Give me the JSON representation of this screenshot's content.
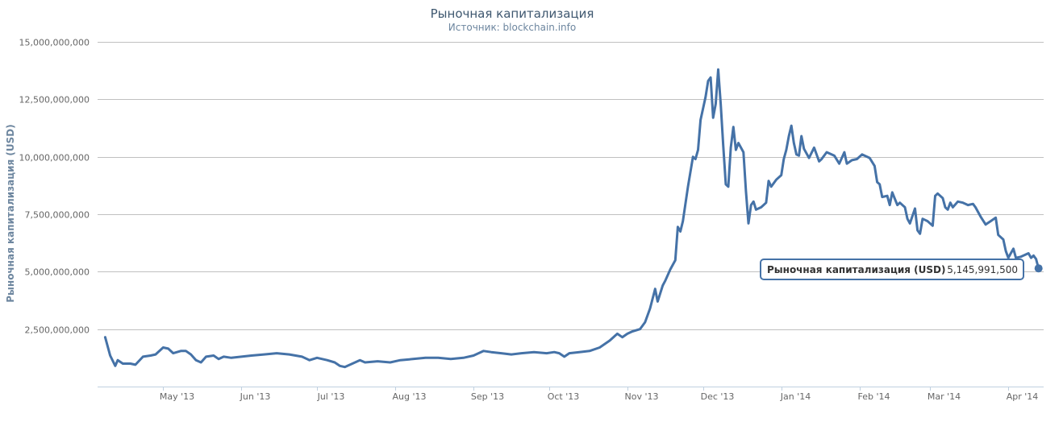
{
  "colors": {
    "series": "#4572a7",
    "tooltip_border": "#4572a7"
  },
  "chart_data": {
    "type": "line",
    "title": "Рыночная капитализация",
    "subtitle": "Источник: blockchain.info",
    "ylabel": "Рыночная капитализация (USD)",
    "xlabel": "",
    "ylim": [
      0,
      15000000000
    ],
    "xlim": [
      "2013-04-05",
      "2014-04-15"
    ],
    "grid": true,
    "y_ticks": [
      {
        "value": 2500000000,
        "label": "2,500,000,000"
      },
      {
        "value": 5000000000,
        "label": "5,000,000,000"
      },
      {
        "value": 7500000000,
        "label": "7,500,000,000"
      },
      {
        "value": 10000000000,
        "label": "10,000,000,000"
      },
      {
        "value": 12500000000,
        "label": "12,500,000,000"
      },
      {
        "value": 15000000000,
        "label": "15,000,000,000"
      }
    ],
    "x_ticks": [
      {
        "date": "2013-05-01",
        "label": "May '13"
      },
      {
        "date": "2013-06-01",
        "label": "Jun '13"
      },
      {
        "date": "2013-07-01",
        "label": "Jul '13"
      },
      {
        "date": "2013-08-01",
        "label": "Aug '13"
      },
      {
        "date": "2013-09-01",
        "label": "Sep '13"
      },
      {
        "date": "2013-10-01",
        "label": "Oct '13"
      },
      {
        "date": "2013-11-01",
        "label": "Nov '13"
      },
      {
        "date": "2013-12-01",
        "label": "Dec '13"
      },
      {
        "date": "2014-01-01",
        "label": "Jan '14"
      },
      {
        "date": "2014-02-01",
        "label": "Feb '14"
      },
      {
        "date": "2014-03-01",
        "label": "Mar '14"
      },
      {
        "date": "2014-04-01",
        "label": "Apr '14"
      }
    ],
    "series": [
      {
        "name": "Рыночная капитализация (USD)",
        "points": [
          [
            "2013-04-08",
            2150000000
          ],
          [
            "2013-04-10",
            1350000000
          ],
          [
            "2013-04-12",
            900000000
          ],
          [
            "2013-04-13",
            1150000000
          ],
          [
            "2013-04-15",
            1000000000
          ],
          [
            "2013-04-18",
            1000000000
          ],
          [
            "2013-04-20",
            950000000
          ],
          [
            "2013-04-23",
            1300000000
          ],
          [
            "2013-04-26",
            1350000000
          ],
          [
            "2013-04-28",
            1400000000
          ],
          [
            "2013-05-01",
            1700000000
          ],
          [
            "2013-05-03",
            1650000000
          ],
          [
            "2013-05-05",
            1450000000
          ],
          [
            "2013-05-08",
            1550000000
          ],
          [
            "2013-05-10",
            1550000000
          ],
          [
            "2013-05-12",
            1400000000
          ],
          [
            "2013-05-14",
            1150000000
          ],
          [
            "2013-05-16",
            1050000000
          ],
          [
            "2013-05-18",
            1300000000
          ],
          [
            "2013-05-21",
            1350000000
          ],
          [
            "2013-05-23",
            1200000000
          ],
          [
            "2013-05-25",
            1300000000
          ],
          [
            "2013-05-28",
            1250000000
          ],
          [
            "2013-06-01",
            1300000000
          ],
          [
            "2013-06-05",
            1350000000
          ],
          [
            "2013-06-10",
            1400000000
          ],
          [
            "2013-06-15",
            1450000000
          ],
          [
            "2013-06-20",
            1400000000
          ],
          [
            "2013-06-25",
            1300000000
          ],
          [
            "2013-06-28",
            1150000000
          ],
          [
            "2013-07-01",
            1250000000
          ],
          [
            "2013-07-05",
            1150000000
          ],
          [
            "2013-07-08",
            1050000000
          ],
          [
            "2013-07-10",
            900000000
          ],
          [
            "2013-07-12",
            850000000
          ],
          [
            "2013-07-15",
            1000000000
          ],
          [
            "2013-07-18",
            1150000000
          ],
          [
            "2013-07-20",
            1050000000
          ],
          [
            "2013-07-25",
            1100000000
          ],
          [
            "2013-07-30",
            1050000000
          ],
          [
            "2013-08-03",
            1150000000
          ],
          [
            "2013-08-08",
            1200000000
          ],
          [
            "2013-08-13",
            1250000000
          ],
          [
            "2013-08-18",
            1250000000
          ],
          [
            "2013-08-23",
            1200000000
          ],
          [
            "2013-08-28",
            1250000000
          ],
          [
            "2013-09-01",
            1350000000
          ],
          [
            "2013-09-05",
            1550000000
          ],
          [
            "2013-09-08",
            1500000000
          ],
          [
            "2013-09-12",
            1450000000
          ],
          [
            "2013-09-16",
            1400000000
          ],
          [
            "2013-09-20",
            1450000000
          ],
          [
            "2013-09-25",
            1500000000
          ],
          [
            "2013-09-30",
            1450000000
          ],
          [
            "2013-10-03",
            1500000000
          ],
          [
            "2013-10-05",
            1450000000
          ],
          [
            "2013-10-07",
            1300000000
          ],
          [
            "2013-10-09",
            1450000000
          ],
          [
            "2013-10-13",
            1500000000
          ],
          [
            "2013-10-17",
            1550000000
          ],
          [
            "2013-10-21",
            1700000000
          ],
          [
            "2013-10-25",
            2000000000
          ],
          [
            "2013-10-28",
            2300000000
          ],
          [
            "2013-10-30",
            2150000000
          ],
          [
            "2013-11-01",
            2300000000
          ],
          [
            "2013-11-03",
            2400000000
          ],
          [
            "2013-11-06",
            2500000000
          ],
          [
            "2013-11-08",
            2800000000
          ],
          [
            "2013-11-10",
            3400000000
          ],
          [
            "2013-11-12",
            4250000000
          ],
          [
            "2013-11-13",
            3700000000
          ],
          [
            "2013-11-15",
            4400000000
          ],
          [
            "2013-11-16",
            4600000000
          ],
          [
            "2013-11-18",
            5100000000
          ],
          [
            "2013-11-20",
            5500000000
          ],
          [
            "2013-11-21",
            6950000000
          ],
          [
            "2013-11-22",
            6750000000
          ],
          [
            "2013-11-23",
            7200000000
          ],
          [
            "2013-11-25",
            8700000000
          ],
          [
            "2013-11-27",
            10000000000
          ],
          [
            "2013-11-28",
            9900000000
          ],
          [
            "2013-11-29",
            10300000000
          ],
          [
            "2013-11-30",
            11600000000
          ],
          [
            "2013-12-02",
            12600000000
          ],
          [
            "2013-12-03",
            13300000000
          ],
          [
            "2013-12-04",
            13450000000
          ],
          [
            "2013-12-05",
            11700000000
          ],
          [
            "2013-12-06",
            12300000000
          ],
          [
            "2013-12-07",
            13800000000
          ],
          [
            "2013-12-08",
            12300000000
          ],
          [
            "2013-12-09",
            10500000000
          ],
          [
            "2013-12-10",
            8800000000
          ],
          [
            "2013-12-11",
            8700000000
          ],
          [
            "2013-12-12",
            10400000000
          ],
          [
            "2013-12-13",
            11300000000
          ],
          [
            "2013-12-14",
            10300000000
          ],
          [
            "2013-12-15",
            10600000000
          ],
          [
            "2013-12-17",
            10200000000
          ],
          [
            "2013-12-18",
            8500000000
          ],
          [
            "2013-12-19",
            7100000000
          ],
          [
            "2013-12-20",
            7900000000
          ],
          [
            "2013-12-21",
            8050000000
          ],
          [
            "2013-12-22",
            7700000000
          ],
          [
            "2013-12-24",
            7800000000
          ],
          [
            "2013-12-26",
            8000000000
          ],
          [
            "2013-12-27",
            8950000000
          ],
          [
            "2013-12-28",
            8700000000
          ],
          [
            "2013-12-30",
            9000000000
          ],
          [
            "2014-01-01",
            9200000000
          ],
          [
            "2014-01-02",
            9900000000
          ],
          [
            "2014-01-03",
            10300000000
          ],
          [
            "2014-01-04",
            10900000000
          ],
          [
            "2014-01-05",
            11350000000
          ],
          [
            "2014-01-06",
            10600000000
          ],
          [
            "2014-01-07",
            10100000000
          ],
          [
            "2014-01-08",
            10050000000
          ],
          [
            "2014-01-09",
            10900000000
          ],
          [
            "2014-01-10",
            10350000000
          ],
          [
            "2014-01-12",
            9950000000
          ],
          [
            "2014-01-14",
            10400000000
          ],
          [
            "2014-01-16",
            9800000000
          ],
          [
            "2014-01-17",
            9900000000
          ],
          [
            "2014-01-19",
            10200000000
          ],
          [
            "2014-01-22",
            10050000000
          ],
          [
            "2014-01-24",
            9700000000
          ],
          [
            "2014-01-26",
            10200000000
          ],
          [
            "2014-01-27",
            9700000000
          ],
          [
            "2014-01-29",
            9850000000
          ],
          [
            "2014-01-31",
            9900000000
          ],
          [
            "2014-02-02",
            10100000000
          ],
          [
            "2014-02-05",
            9950000000
          ],
          [
            "2014-02-07",
            9600000000
          ],
          [
            "2014-02-08",
            8900000000
          ],
          [
            "2014-02-09",
            8800000000
          ],
          [
            "2014-02-10",
            8250000000
          ],
          [
            "2014-02-12",
            8300000000
          ],
          [
            "2014-02-13",
            7900000000
          ],
          [
            "2014-02-14",
            8450000000
          ],
          [
            "2014-02-16",
            7900000000
          ],
          [
            "2014-02-17",
            8000000000
          ],
          [
            "2014-02-19",
            7800000000
          ],
          [
            "2014-02-20",
            7300000000
          ],
          [
            "2014-02-21",
            7100000000
          ],
          [
            "2014-02-23",
            7750000000
          ],
          [
            "2014-02-24",
            6800000000
          ],
          [
            "2014-02-25",
            6650000000
          ],
          [
            "2014-02-26",
            7300000000
          ],
          [
            "2014-02-28",
            7200000000
          ],
          [
            "2014-03-02",
            7000000000
          ],
          [
            "2014-03-03",
            8300000000
          ],
          [
            "2014-03-04",
            8400000000
          ],
          [
            "2014-03-06",
            8200000000
          ],
          [
            "2014-03-07",
            7800000000
          ],
          [
            "2014-03-08",
            7700000000
          ],
          [
            "2014-03-09",
            8000000000
          ],
          [
            "2014-03-10",
            7800000000
          ],
          [
            "2014-03-12",
            8050000000
          ],
          [
            "2014-03-14",
            8000000000
          ],
          [
            "2014-03-16",
            7900000000
          ],
          [
            "2014-03-18",
            7950000000
          ],
          [
            "2014-03-19",
            7800000000
          ],
          [
            "2014-03-21",
            7400000000
          ],
          [
            "2014-03-23",
            7050000000
          ],
          [
            "2014-03-25",
            7200000000
          ],
          [
            "2014-03-27",
            7350000000
          ],
          [
            "2014-03-28",
            6600000000
          ],
          [
            "2014-03-30",
            6400000000
          ],
          [
            "2014-03-31",
            5900000000
          ],
          [
            "2014-04-01",
            5600000000
          ],
          [
            "2014-04-02",
            5800000000
          ],
          [
            "2014-04-03",
            6000000000
          ],
          [
            "2014-04-04",
            5600000000
          ],
          [
            "2014-04-06",
            5650000000
          ],
          [
            "2014-04-08",
            5750000000
          ],
          [
            "2014-04-09",
            5800000000
          ],
          [
            "2014-04-10",
            5600000000
          ],
          [
            "2014-04-11",
            5700000000
          ],
          [
            "2014-04-12",
            5550000000
          ],
          [
            "2014-04-13",
            5145991500
          ]
        ]
      }
    ],
    "tooltip": {
      "series_name": "Рыночная капитализация (USD)",
      "value": "5,145,991,500"
    }
  }
}
